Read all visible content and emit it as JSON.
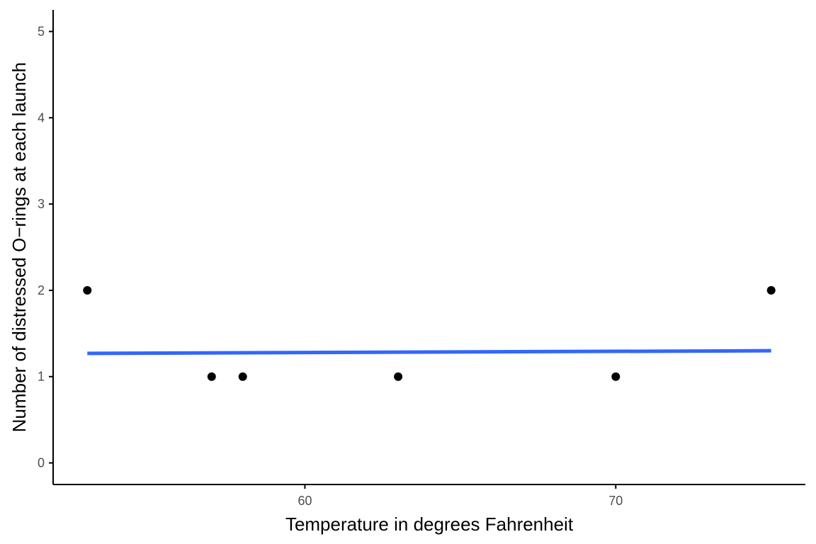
{
  "chart_data": {
    "type": "scatter",
    "xlabel": "Temperature in degrees Fahrenheit",
    "ylabel": "Number of distressed O−rings at each launch",
    "xlim": [
      51.9,
      76.1
    ],
    "ylim": [
      -0.25,
      5.25
    ],
    "x_ticks": [
      60,
      70
    ],
    "x_tick_labels": [
      "60",
      "70"
    ],
    "y_ticks": [
      0,
      1,
      2,
      3,
      4,
      5
    ],
    "y_tick_labels": [
      "0",
      "1",
      "2",
      "3",
      "4",
      "5"
    ],
    "grid": false,
    "points": [
      {
        "x": 53,
        "y": 2
      },
      {
        "x": 57,
        "y": 1
      },
      {
        "x": 58,
        "y": 1
      },
      {
        "x": 63,
        "y": 1
      },
      {
        "x": 70,
        "y": 1
      },
      {
        "x": 75,
        "y": 2
      }
    ],
    "fit_line": {
      "type": "linear",
      "x": [
        53,
        75
      ],
      "y": [
        1.27,
        1.3
      ]
    },
    "colors": {
      "points": "#000000",
      "fit_line": "#3366FF",
      "axis": "#000000",
      "tick_label": "#4d4d4d"
    }
  }
}
